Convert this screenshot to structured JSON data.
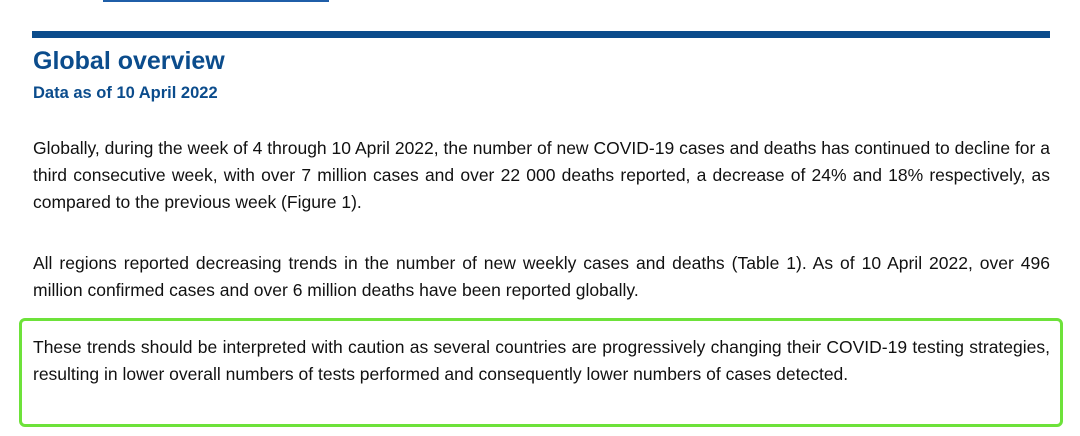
{
  "section": {
    "title": "Global overview",
    "subtitle": "Data as of 10 April 2022"
  },
  "paragraphs": [
    "Globally, during the week of 4 through 10 April 2022, the number of new COVID-19 cases and deaths has continued to decline for a third consecutive week, with over 7 million cases and over 22 000 deaths reported, a decrease of 24% and 18% respectively, as compared to the previous week (Figure 1).",
    "All regions reported decreasing trends in the number of new weekly cases and deaths (Table 1). As of 10 April 2022, over 496 million confirmed cases and over 6 million deaths have been reported globally."
  ],
  "caution": {
    "text": "These trends should be interpreted with caution as several countries are progressively changing their COVID-19 testing strategies, resulting in lower overall numbers of tests performed and consequently lower numbers of cases detected.",
    "highlight_color": "#6de23a"
  },
  "colors": {
    "heading": "#0b4c8c",
    "rule": "#0b4c8c",
    "body_text": "#111111"
  }
}
